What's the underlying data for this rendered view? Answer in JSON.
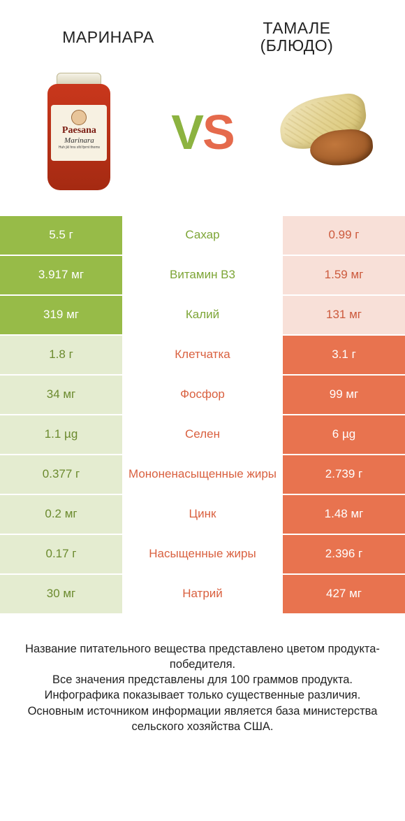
{
  "header": {
    "left_title": "МАРИНАРА",
    "right_title_line1": "ТАМАЛЕ",
    "right_title_line2": "(БЛЮДО)"
  },
  "vs": {
    "v": "V",
    "s": "S"
  },
  "jar": {
    "brand": "Paesana",
    "sub": "Marinara",
    "small": "Huh jkl hns sfd fprnt thoms"
  },
  "colors": {
    "winner_left_bg": "#97bb48",
    "winner_right_bg": "#e8734f",
    "loser_left_bg": "#e4ecd0",
    "loser_right_bg": "#f8e0d8",
    "label_green": "#7da536",
    "label_orange": "#d9603f"
  },
  "rows": [
    {
      "label": "Сахар",
      "left": "5.5 г",
      "right": "0.99 г",
      "winner": "left"
    },
    {
      "label": "Витамин B3",
      "left": "3.917 мг",
      "right": "1.59 мг",
      "winner": "left"
    },
    {
      "label": "Калий",
      "left": "319 мг",
      "right": "131 мг",
      "winner": "left"
    },
    {
      "label": "Клетчатка",
      "left": "1.8 г",
      "right": "3.1 г",
      "winner": "right"
    },
    {
      "label": "Фосфор",
      "left": "34 мг",
      "right": "99 мг",
      "winner": "right"
    },
    {
      "label": "Селен",
      "left": "1.1 µg",
      "right": "6 µg",
      "winner": "right"
    },
    {
      "label": "Мононенасыщенные жиры",
      "left": "0.377 г",
      "right": "2.739 г",
      "winner": "right"
    },
    {
      "label": "Цинк",
      "left": "0.2 мг",
      "right": "1.48 мг",
      "winner": "right"
    },
    {
      "label": "Насыщенные жиры",
      "left": "0.17 г",
      "right": "2.396 г",
      "winner": "right"
    },
    {
      "label": "Натрий",
      "left": "30 мг",
      "right": "427 мг",
      "winner": "right"
    }
  ],
  "footer": {
    "line1": "Название питательного вещества представлено цветом продукта-победителя.",
    "line2": "Все значения представлены для 100 граммов продукта.",
    "line3": "Инфографика показывает только существенные различия.",
    "line4": "Основным источником информации является база министерства сельского хозяйства США."
  }
}
